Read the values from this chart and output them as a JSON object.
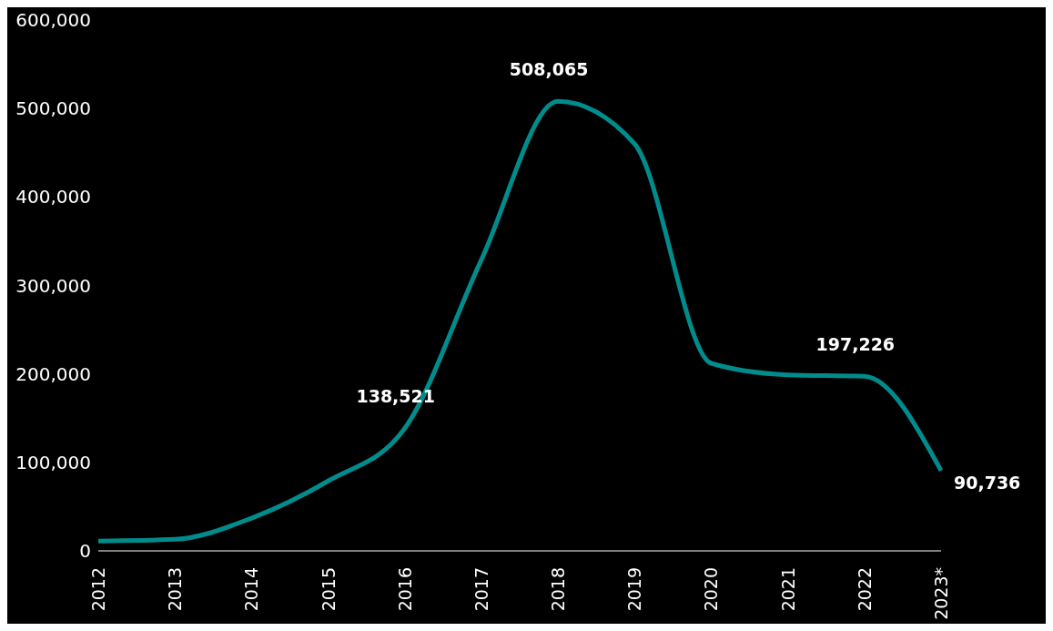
{
  "chart_data": {
    "type": "line",
    "categories": [
      "2012",
      "2013",
      "2014",
      "2015",
      "2016",
      "2017",
      "2018",
      "2019",
      "2020",
      "2021",
      "2022",
      "2023*"
    ],
    "series": [
      {
        "color": "#008c8c",
        "values": [
          11000,
          13000,
          37000,
          79000,
          138521,
          329000,
          508065,
          460000,
          212000,
          199000,
          197226,
          90736
        ],
        "value_labels": [
          null,
          null,
          null,
          null,
          "138,521",
          null,
          "508,065",
          null,
          null,
          null,
          "197,226",
          "90,736"
        ]
      }
    ],
    "ylim": [
      0,
      600000
    ],
    "yticks": [
      {
        "value": 0,
        "label": "0"
      },
      {
        "value": 100000,
        "label": "100,000"
      },
      {
        "value": 200000,
        "label": "200,000"
      },
      {
        "value": 300000,
        "label": "300,000"
      },
      {
        "value": 400000,
        "label": "400,000"
      },
      {
        "value": 500000,
        "label": "500,000"
      },
      {
        "value": 600000,
        "label": "600,000"
      }
    ],
    "grid": false,
    "legend": false,
    "marker": "none",
    "line_style": "solid"
  }
}
